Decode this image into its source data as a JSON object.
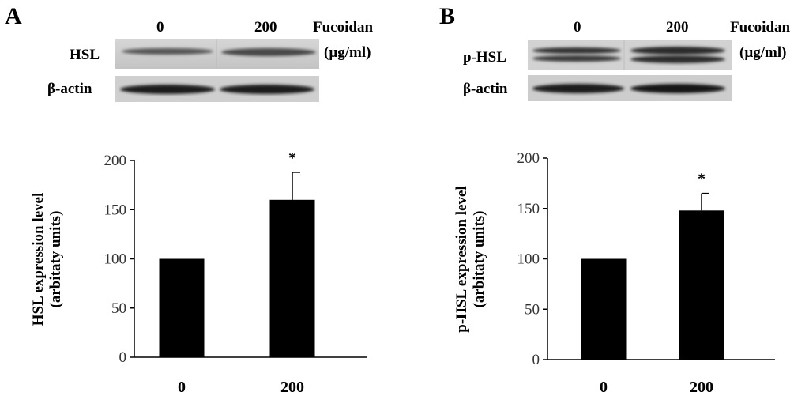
{
  "panels": [
    {
      "letter": "A",
      "blot": {
        "lane_labels": [
          "0",
          "200"
        ],
        "treatment_label": "Fucoidan",
        "unit_label": "(µg/ml)",
        "row_labels": [
          "HSL",
          "β-actin"
        ]
      }
    },
    {
      "letter": "B",
      "blot": {
        "lane_labels": [
          "0",
          "200"
        ],
        "treatment_label": "Fucoidan",
        "unit_label": "(µg/ml)",
        "row_labels": [
          "p-HSL",
          "β-actin"
        ]
      }
    }
  ],
  "chart_data": [
    {
      "type": "bar",
      "categories": [
        "0",
        "200"
      ],
      "values": [
        100,
        160
      ],
      "error_plus": [
        0,
        28
      ],
      "significance": [
        "",
        "*"
      ],
      "ylabel_lines": [
        "HSL expression level",
        "(arbitaty units)"
      ],
      "ylim": [
        0,
        200
      ],
      "yticks": [
        0,
        50,
        100,
        150,
        200
      ],
      "bar_color": "#000000",
      "grid": false
    },
    {
      "type": "bar",
      "categories": [
        "0",
        "200"
      ],
      "values": [
        100,
        148
      ],
      "error_plus": [
        0,
        17
      ],
      "significance": [
        "",
        "*"
      ],
      "ylabel_lines": [
        "p-HSL expression level",
        "(arbitaty units)"
      ],
      "ylim": [
        0,
        200
      ],
      "yticks": [
        0,
        50,
        100,
        150,
        200
      ],
      "bar_color": "#000000",
      "grid": false
    }
  ]
}
